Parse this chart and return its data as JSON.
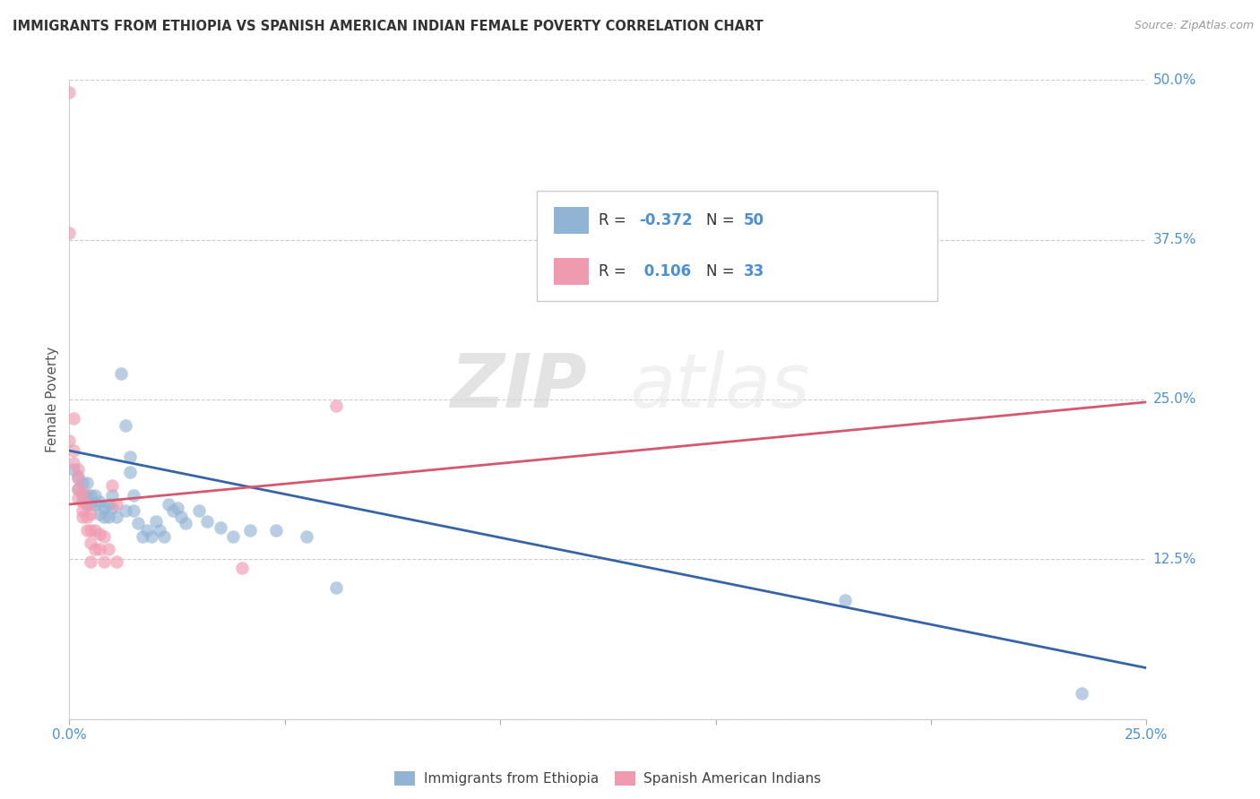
{
  "title": "IMMIGRANTS FROM ETHIOPIA VS SPANISH AMERICAN INDIAN FEMALE POVERTY CORRELATION CHART",
  "source": "Source: ZipAtlas.com",
  "ylabel": "Female Poverty",
  "xlim": [
    0.0,
    0.25
  ],
  "ylim": [
    0.0,
    0.5
  ],
  "yticks_right": [
    0.0,
    0.125,
    0.25,
    0.375,
    0.5
  ],
  "yticklabels_right": [
    "",
    "12.5%",
    "25.0%",
    "37.5%",
    "50.0%"
  ],
  "blue_scatter": [
    [
      0.001,
      0.195
    ],
    [
      0.002,
      0.19
    ],
    [
      0.002,
      0.18
    ],
    [
      0.003,
      0.185
    ],
    [
      0.003,
      0.175
    ],
    [
      0.004,
      0.185
    ],
    [
      0.004,
      0.175
    ],
    [
      0.004,
      0.168
    ],
    [
      0.005,
      0.175
    ],
    [
      0.005,
      0.168
    ],
    [
      0.006,
      0.175
    ],
    [
      0.006,
      0.168
    ],
    [
      0.007,
      0.17
    ],
    [
      0.007,
      0.16
    ],
    [
      0.008,
      0.165
    ],
    [
      0.008,
      0.158
    ],
    [
      0.009,
      0.168
    ],
    [
      0.009,
      0.158
    ],
    [
      0.01,
      0.175
    ],
    [
      0.01,
      0.165
    ],
    [
      0.011,
      0.158
    ],
    [
      0.012,
      0.27
    ],
    [
      0.013,
      0.23
    ],
    [
      0.013,
      0.163
    ],
    [
      0.014,
      0.205
    ],
    [
      0.014,
      0.193
    ],
    [
      0.015,
      0.175
    ],
    [
      0.015,
      0.163
    ],
    [
      0.016,
      0.153
    ],
    [
      0.017,
      0.143
    ],
    [
      0.018,
      0.148
    ],
    [
      0.019,
      0.143
    ],
    [
      0.02,
      0.155
    ],
    [
      0.021,
      0.148
    ],
    [
      0.022,
      0.143
    ],
    [
      0.023,
      0.168
    ],
    [
      0.024,
      0.163
    ],
    [
      0.025,
      0.165
    ],
    [
      0.026,
      0.158
    ],
    [
      0.027,
      0.153
    ],
    [
      0.03,
      0.163
    ],
    [
      0.032,
      0.155
    ],
    [
      0.035,
      0.15
    ],
    [
      0.038,
      0.143
    ],
    [
      0.042,
      0.148
    ],
    [
      0.048,
      0.148
    ],
    [
      0.055,
      0.143
    ],
    [
      0.062,
      0.103
    ],
    [
      0.18,
      0.093
    ],
    [
      0.235,
      0.02
    ]
  ],
  "pink_scatter": [
    [
      0.0,
      0.49
    ],
    [
      0.0,
      0.38
    ],
    [
      0.001,
      0.235
    ],
    [
      0.001,
      0.21
    ],
    [
      0.001,
      0.2
    ],
    [
      0.002,
      0.195
    ],
    [
      0.002,
      0.188
    ],
    [
      0.002,
      0.18
    ],
    [
      0.002,
      0.173
    ],
    [
      0.003,
      0.178
    ],
    [
      0.003,
      0.17
    ],
    [
      0.003,
      0.163
    ],
    [
      0.003,
      0.158
    ],
    [
      0.004,
      0.168
    ],
    [
      0.004,
      0.158
    ],
    [
      0.004,
      0.148
    ],
    [
      0.005,
      0.16
    ],
    [
      0.005,
      0.148
    ],
    [
      0.005,
      0.138
    ],
    [
      0.005,
      0.123
    ],
    [
      0.006,
      0.148
    ],
    [
      0.006,
      0.133
    ],
    [
      0.007,
      0.145
    ],
    [
      0.007,
      0.133
    ],
    [
      0.008,
      0.143
    ],
    [
      0.008,
      0.123
    ],
    [
      0.009,
      0.133
    ],
    [
      0.01,
      0.183
    ],
    [
      0.011,
      0.168
    ],
    [
      0.011,
      0.123
    ],
    [
      0.04,
      0.118
    ],
    [
      0.062,
      0.245
    ],
    [
      0.0,
      0.218
    ]
  ],
  "blue_line": {
    "x": [
      0.0,
      0.25
    ],
    "y": [
      0.21,
      0.04
    ]
  },
  "pink_line": {
    "x": [
      0.0,
      0.25
    ],
    "y": [
      0.168,
      0.248
    ]
  },
  "scatter_size": 110,
  "scatter_alpha": 0.65,
  "blue_color": "#92b4d4",
  "pink_color": "#f09ab0",
  "blue_line_color": "#3565a8",
  "pink_line_color": "#d45870",
  "watermark_zip": "ZIP",
  "watermark_atlas": "atlas",
  "background_color": "#ffffff",
  "grid_color": "#cccccc",
  "legend_r1": "-0.372",
  "legend_n1": "50",
  "legend_r2": "0.106",
  "legend_n2": "33",
  "legend_text_color": "#4a90d9",
  "legend_label_color": "#333333"
}
